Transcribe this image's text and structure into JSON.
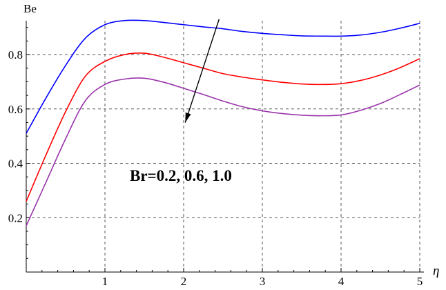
{
  "chart_data": {
    "type": "line",
    "title": "",
    "xlabel": "η",
    "ylabel": "Be",
    "xlim": [
      0,
      5
    ],
    "ylim": [
      0.0,
      0.95
    ],
    "x_ticks": [
      1,
      2,
      3,
      4,
      5
    ],
    "y_ticks": [
      0.2,
      0.4,
      0.6,
      0.8
    ],
    "x_tick_labels": [
      "1",
      "2",
      "3",
      "4",
      "5"
    ],
    "y_tick_labels": [
      "0.2",
      "0.4",
      "0.6",
      "0.8"
    ],
    "grid": true,
    "grid_style": "dashed",
    "legend": "none",
    "annotation": {
      "text": "Br=0.2, 0.6, 1.0",
      "arrow_from": [
        2.45,
        0.93
      ],
      "arrow_to": [
        2.02,
        0.55
      ]
    },
    "x": [
      0,
      0.25,
      0.5,
      0.75,
      1.0,
      1.25,
      1.5,
      1.75,
      2.0,
      2.25,
      2.5,
      2.75,
      3.0,
      3.25,
      3.5,
      3.75,
      4.0,
      4.25,
      4.5,
      4.75,
      5.0
    ],
    "series": [
      {
        "color": "#0000ff",
        "values": [
          0.51,
          0.64,
          0.76,
          0.86,
          0.91,
          0.925,
          0.925,
          0.918,
          0.91,
          0.902,
          0.895,
          0.885,
          0.878,
          0.873,
          0.869,
          0.868,
          0.868,
          0.872,
          0.882,
          0.897,
          0.915
        ]
      },
      {
        "color": "#ff0000",
        "values": [
          0.26,
          0.43,
          0.59,
          0.72,
          0.775,
          0.8,
          0.805,
          0.79,
          0.77,
          0.75,
          0.73,
          0.717,
          0.707,
          0.698,
          0.692,
          0.69,
          0.693,
          0.705,
          0.725,
          0.752,
          0.785
        ]
      },
      {
        "color": "#9933aa",
        "values": [
          0.17,
          0.33,
          0.49,
          0.63,
          0.69,
          0.71,
          0.713,
          0.698,
          0.676,
          0.653,
          0.629,
          0.608,
          0.593,
          0.583,
          0.577,
          0.575,
          0.578,
          0.595,
          0.62,
          0.653,
          0.688
        ]
      }
    ]
  }
}
